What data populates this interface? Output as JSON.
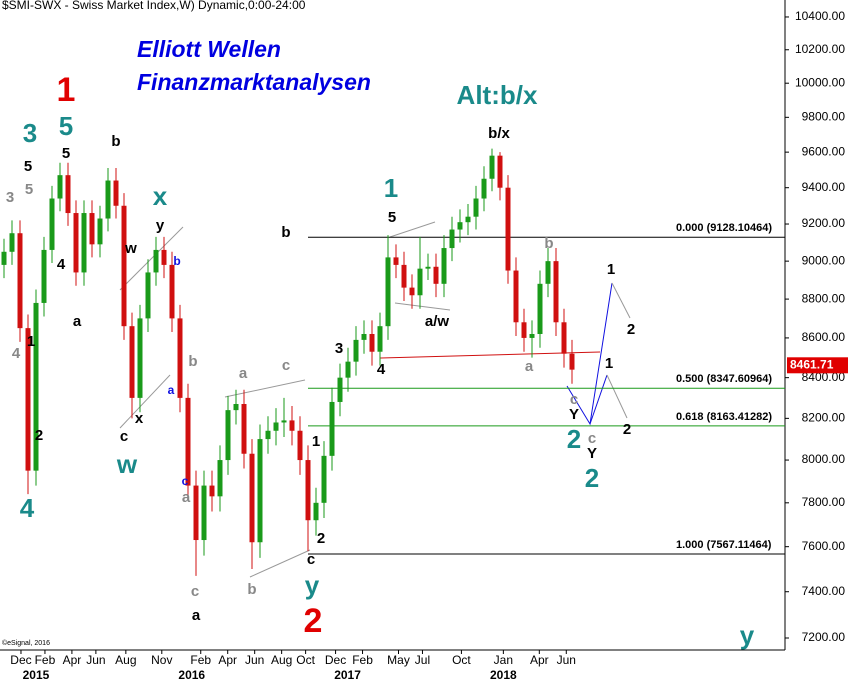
{
  "chart_data": {
    "type": "candlestick",
    "title": "$SMI-SWX - Swiss Market Index,W) Dynamic,0:00-24:00",
    "brand": [
      "Elliott Wellen",
      "Finanzmarktanalysen"
    ],
    "copyright": "©eSignal, 2016",
    "log": true,
    "ylim": [
      7149,
      10505
    ],
    "yticks": [
      {
        "value": 7200,
        "label": "7200.00"
      },
      {
        "value": 7400,
        "label": "7400.00"
      },
      {
        "value": 7600,
        "label": "7600.00"
      },
      {
        "value": 7800,
        "label": "7800.00"
      },
      {
        "value": 8000,
        "label": "8000.00"
      },
      {
        "value": 8200,
        "label": "8200.00"
      },
      {
        "value": 8400,
        "label": "8400.00"
      },
      {
        "value": 8600,
        "label": "8600.00"
      },
      {
        "value": 8800,
        "label": "8800.00"
      },
      {
        "value": 9000,
        "label": "9000.00"
      },
      {
        "value": 9200,
        "label": "9200.00"
      },
      {
        "value": 9400,
        "label": "9400.00"
      },
      {
        "value": 9600,
        "label": "9600.00"
      },
      {
        "value": 9800,
        "label": "9800.00"
      },
      {
        "value": 10000,
        "label": "10000.00"
      },
      {
        "value": 10200,
        "label": "10200.00"
      },
      {
        "value": 10400,
        "label": "10400.00"
      }
    ],
    "xlim": [
      0,
      262
    ],
    "xticks": [
      {
        "value": 7,
        "label": "Dec"
      },
      {
        "value": 15,
        "label": "Feb"
      },
      {
        "value": 24,
        "label": "Apr"
      },
      {
        "value": 32,
        "label": "Jun"
      },
      {
        "value": 42,
        "label": "Aug"
      },
      {
        "value": 54,
        "label": "Nov"
      },
      {
        "value": 67,
        "label": "Feb"
      },
      {
        "value": 76,
        "label": "Apr"
      },
      {
        "value": 85,
        "label": "Jun"
      },
      {
        "value": 94,
        "label": "Aug"
      },
      {
        "value": 102,
        "label": "Oct"
      },
      {
        "value": 112,
        "label": "Dec"
      },
      {
        "value": 121,
        "label": "Feb"
      },
      {
        "value": 133,
        "label": "May"
      },
      {
        "value": 141,
        "label": "Jul"
      },
      {
        "value": 154,
        "label": "Oct"
      },
      {
        "value": 168,
        "label": "Jan"
      },
      {
        "value": 180,
        "label": "Apr"
      },
      {
        "value": 189,
        "label": "Jun"
      }
    ],
    "year_ticks": [
      {
        "value": 12,
        "label": "2015"
      },
      {
        "value": 64,
        "label": "2016"
      },
      {
        "value": 116,
        "label": "2017"
      },
      {
        "value": 168,
        "label": "2018"
      }
    ],
    "up_color": "#1a9a1a",
    "down_color": "#d01010",
    "candles": [
      [
        8980,
        9120,
        8910,
        9050
      ],
      [
        9050,
        9220,
        8980,
        9150
      ],
      [
        9150,
        9220,
        8580,
        8650
      ],
      [
        8650,
        8720,
        7840,
        7950
      ],
      [
        7950,
        8850,
        7880,
        8780
      ],
      [
        8780,
        9130,
        8710,
        9060
      ],
      [
        9060,
        9410,
        8990,
        9340
      ],
      [
        9340,
        9540,
        9270,
        9470
      ],
      [
        9470,
        9540,
        9190,
        9260
      ],
      [
        9260,
        9330,
        8870,
        8940
      ],
      [
        8940,
        9330,
        8870,
        9260
      ],
      [
        9260,
        9330,
        9020,
        9090
      ],
      [
        9090,
        9300,
        9020,
        9230
      ],
      [
        9230,
        9510,
        9160,
        9440
      ],
      [
        9440,
        9510,
        9230,
        9300
      ],
      [
        9300,
        9370,
        8590,
        8660
      ],
      [
        8660,
        8730,
        8200,
        8300
      ],
      [
        8300,
        8770,
        8230,
        8700
      ],
      [
        8700,
        9010,
        8630,
        8940
      ],
      [
        8940,
        9130,
        8870,
        9060
      ],
      [
        9060,
        9130,
        8910,
        8980
      ],
      [
        8980,
        9050,
        8630,
        8700
      ],
      [
        8700,
        8770,
        8230,
        8300
      ],
      [
        8300,
        8370,
        7810,
        7880
      ],
      [
        7880,
        7950,
        7470,
        7630
      ],
      [
        7630,
        7950,
        7560,
        7880
      ],
      [
        7880,
        7950,
        7760,
        7830
      ],
      [
        7830,
        8070,
        7760,
        8000
      ],
      [
        8000,
        8310,
        7930,
        8240
      ],
      [
        8240,
        8340,
        8170,
        8270
      ],
      [
        8270,
        8340,
        7960,
        8030
      ],
      [
        8030,
        8100,
        7500,
        7620
      ],
      [
        7620,
        8170,
        7550,
        8100
      ],
      [
        8100,
        8210,
        8030,
        8140
      ],
      [
        8140,
        8250,
        8070,
        8180
      ],
      [
        8180,
        8300,
        8110,
        8190
      ],
      [
        8190,
        8260,
        8070,
        8140
      ],
      [
        8140,
        8210,
        7930,
        8000
      ],
      [
        8000,
        8070,
        7580,
        7720
      ],
      [
        7720,
        7870,
        7650,
        7800
      ],
      [
        7800,
        8090,
        7730,
        8020
      ],
      [
        8020,
        8350,
        7950,
        8280
      ],
      [
        8280,
        8470,
        8210,
        8400
      ],
      [
        8400,
        8550,
        8330,
        8480
      ],
      [
        8480,
        8660,
        8410,
        8590
      ],
      [
        8590,
        8690,
        8520,
        8620
      ],
      [
        8620,
        8690,
        8460,
        8530
      ],
      [
        8530,
        8730,
        8460,
        8660
      ],
      [
        8660,
        9140,
        8590,
        9020
      ],
      [
        9020,
        9090,
        8910,
        8980
      ],
      [
        8980,
        9050,
        8790,
        8860
      ],
      [
        8860,
        8930,
        8750,
        8820
      ],
      [
        8820,
        9130,
        8750,
        8960
      ],
      [
        8960,
        9040,
        8900,
        8970
      ],
      [
        8970,
        9040,
        8810,
        8880
      ],
      [
        8880,
        9140,
        8810,
        9070
      ],
      [
        9070,
        9240,
        9000,
        9170
      ],
      [
        9170,
        9280,
        9100,
        9210
      ],
      [
        9210,
        9310,
        9140,
        9240
      ],
      [
        9240,
        9410,
        9170,
        9340
      ],
      [
        9340,
        9520,
        9270,
        9450
      ],
      [
        9450,
        9620,
        9380,
        9580
      ],
      [
        9580,
        9600,
        9330,
        9400
      ],
      [
        9400,
        9470,
        8880,
        8950
      ],
      [
        8950,
        9020,
        8610,
        8680
      ],
      [
        8680,
        8750,
        8530,
        8600
      ],
      [
        8600,
        8690,
        8500,
        8620
      ],
      [
        8620,
        8950,
        8550,
        8880
      ],
      [
        8880,
        9070,
        8810,
        9000
      ],
      [
        9000,
        9070,
        8610,
        8680
      ],
      [
        8680,
        8750,
        8450,
        8520
      ],
      [
        8520,
        8590,
        8370,
        8440
      ]
    ],
    "fib_levels": [
      {
        "value": 9128.10464,
        "label": "0.000 (9128.10464)",
        "color": "#000000"
      },
      {
        "value": 8347.60964,
        "label": "0.500 (8347.60964)",
        "color": "#1a9a1a"
      },
      {
        "value": 8163.41282,
        "label": "0.618 (8163.41282)",
        "color": "#1a9a1a"
      },
      {
        "value": 7567.11464,
        "label": "1.000 (7567.11464)",
        "color": "#000000"
      }
    ],
    "last_price": 8461.71,
    "annotations": [
      "1",
      "2",
      "3",
      "5",
      "x",
      "w",
      "4",
      "1",
      "Alt:b/x",
      "2",
      "2",
      "y",
      "y",
      "5",
      "5",
      "b",
      "y",
      "w",
      "4",
      "a",
      "c",
      "x",
      "b",
      "a",
      "2",
      "1",
      "1",
      "2",
      "c",
      "3",
      "4",
      "5",
      "a/w",
      "b/x",
      "1",
      "2",
      "1",
      "2",
      "Y",
      "Y",
      "3",
      "5",
      "4",
      "a",
      "c",
      "b",
      "a",
      "c",
      "b",
      "b",
      "a",
      "c",
      "c",
      "b",
      "a",
      "c"
    ]
  }
}
